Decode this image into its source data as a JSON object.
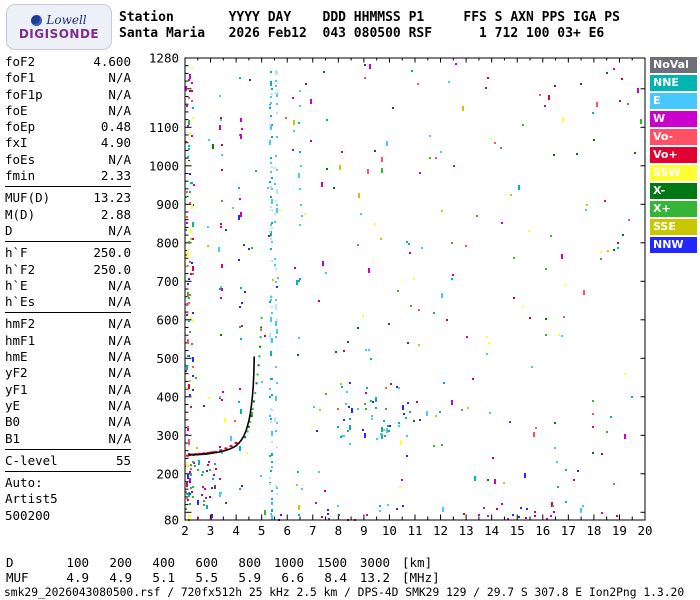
{
  "logo": {
    "line1": "Lowell",
    "line2": "DIGISONDE"
  },
  "header": {
    "line1": "Station       YYYY DAY    DDD HHMMSS P1     FFS S AXN PPS IGA PS",
    "line2": "Santa Maria   2026 Feb12  043 080500 RSF      1 712 100 03+ E6"
  },
  "params": {
    "groups": [
      {
        "rows": [
          [
            "foF2",
            "4.600"
          ],
          [
            "foF1",
            "N/A"
          ],
          [
            "foF1p",
            "N/A"
          ],
          [
            "foE",
            "N/A"
          ],
          [
            "foEp",
            "0.48"
          ],
          [
            "fxI",
            "4.90"
          ],
          [
            "foEs",
            "N/A"
          ],
          [
            "fmin",
            "2.33"
          ]
        ]
      },
      {
        "rows": [
          [
            "MUF(D)",
            "13.23"
          ],
          [
            "M(D)",
            "2.88"
          ],
          [
            "D",
            "N/A"
          ]
        ]
      },
      {
        "rows": [
          [
            "h`F",
            "250.0"
          ],
          [
            "h`F2",
            "250.0"
          ],
          [
            "h`E",
            "N/A"
          ],
          [
            "h`Es",
            "N/A"
          ]
        ]
      },
      {
        "rows": [
          [
            "hmF2",
            "N/A"
          ],
          [
            "hmF1",
            "N/A"
          ],
          [
            "hmE",
            "N/A"
          ],
          [
            "yF2",
            "N/A"
          ],
          [
            "yF1",
            "N/A"
          ],
          [
            "yE",
            "N/A"
          ],
          [
            "B0",
            "N/A"
          ],
          [
            "B1",
            "N/A"
          ]
        ]
      },
      {
        "rows": [
          [
            "C-level",
            "55"
          ]
        ]
      }
    ],
    "auto_lines": [
      "Auto:",
      "Artist5",
      "500200"
    ]
  },
  "legend": {
    "items": [
      {
        "label": "NoVal",
        "color": "#6e6e78"
      },
      {
        "label": "NNE",
        "color": "#00b4b4"
      },
      {
        "label": "E",
        "color": "#46c8ff"
      },
      {
        "label": "W",
        "color": "#cc00cc"
      },
      {
        "label": "Vo-",
        "color": "#ff5064"
      },
      {
        "label": "Vo+",
        "color": "#e00032"
      },
      {
        "label": "SSW",
        "color": "#ffff32"
      },
      {
        "label": "X-",
        "color": "#007814"
      },
      {
        "label": "X+",
        "color": "#36b436"
      },
      {
        "label": "SSE",
        "color": "#c8c800"
      },
      {
        "label": "NNW",
        "color": "#2328ff"
      }
    ]
  },
  "d_muf": {
    "rows": [
      {
        "label": "D",
        "values": [
          "100",
          "200",
          "400",
          "600",
          "800",
          "1000",
          "1500",
          "3000"
        ],
        "unit": "[km]"
      },
      {
        "label": "MUF",
        "values": [
          "4.9",
          "4.9",
          "5.1",
          "5.5",
          "5.9",
          "6.6",
          "8.4",
          "13.2"
        ],
        "unit": "[MHz]"
      }
    ]
  },
  "footer": {
    "text": "smk29_2026043080500.rsf / 720fx512h 25 kHz 2.5 km / DPS-4D SMK29 129 / 29.7 S 307.8 E Ion2Png 1.3.20"
  },
  "chart_data": {
    "type": "scatter",
    "title": "Digisonde ionogram Santa Maria 2026 Feb12 043 080500",
    "xlabel": "[MHz]",
    "ylabel": "[km]",
    "xlim": [
      2,
      20
    ],
    "ylim": [
      80,
      1280
    ],
    "x_tick_labels": [
      2,
      3,
      4,
      5,
      6,
      7,
      8,
      9,
      10,
      11,
      12,
      13,
      14,
      15,
      16,
      17,
      18,
      19,
      20
    ],
    "y_tick_labels": [
      1280,
      1100,
      1000,
      900,
      800,
      700,
      600,
      500,
      400,
      300,
      200,
      80
    ],
    "o_trace_black": [
      [
        2.15,
        249
      ],
      [
        2.3,
        250
      ],
      [
        2.5,
        250
      ],
      [
        2.7,
        251
      ],
      [
        2.9,
        252
      ],
      [
        3.1,
        254
      ],
      [
        3.3,
        256
      ],
      [
        3.5,
        259
      ],
      [
        3.7,
        263
      ],
      [
        3.9,
        269
      ],
      [
        4.0,
        273
      ],
      [
        4.1,
        279
      ],
      [
        4.2,
        287
      ],
      [
        4.3,
        298
      ],
      [
        4.4,
        314
      ],
      [
        4.5,
        338
      ],
      [
        4.55,
        355
      ],
      [
        4.6,
        378
      ],
      [
        4.64,
        402
      ],
      [
        4.67,
        428
      ],
      [
        4.69,
        455
      ],
      [
        4.7,
        478
      ],
      [
        4.71,
        505
      ]
    ],
    "o_trace_red_dots": [
      [
        2.1,
        247
      ],
      [
        2.18,
        249
      ],
      [
        2.26,
        250
      ],
      [
        2.34,
        249
      ],
      [
        2.42,
        251
      ],
      [
        2.5,
        250
      ],
      [
        2.58,
        252
      ],
      [
        2.66,
        251
      ],
      [
        2.74,
        253
      ],
      [
        2.82,
        252
      ],
      [
        2.9,
        254
      ],
      [
        3.0,
        255
      ],
      [
        3.1,
        256
      ],
      [
        3.2,
        257
      ],
      [
        3.4,
        261
      ],
      [
        3.6,
        266
      ],
      [
        3.8,
        272
      ],
      [
        4.0,
        280
      ]
    ],
    "x_trace_green_dots": [
      [
        4.35,
        295
      ],
      [
        4.45,
        310
      ],
      [
        4.5,
        322
      ],
      [
        4.55,
        335
      ],
      [
        4.6,
        350
      ],
      [
        4.65,
        368
      ],
      [
        4.7,
        388
      ],
      [
        4.75,
        410
      ],
      [
        4.8,
        435
      ],
      [
        4.84,
        458
      ],
      [
        4.88,
        482
      ],
      [
        4.91,
        505
      ],
      [
        4.94,
        530
      ],
      [
        4.96,
        555
      ],
      [
        4.98,
        580
      ],
      [
        5.0,
        605
      ]
    ],
    "noise_seed": 20260212,
    "noise_clusters": [
      {
        "name": "left-edge",
        "fmin": 2.0,
        "fmax": 2.3,
        "hmin": 80,
        "hmax": 1270,
        "count": 100,
        "colors": [
          "#cc00cc",
          "#e00032",
          "#00b4b4",
          "#2328ff",
          "#36b436",
          "#ffff32",
          "#ff5064"
        ]
      },
      {
        "name": "stripe-5.3",
        "fmin": 5.28,
        "fmax": 5.38,
        "hmin": 90,
        "hmax": 1270,
        "count": 80,
        "colors": [
          "#46c8ff",
          "#00b4b4",
          "#b4e6ff"
        ]
      },
      {
        "name": "stripe-5.5",
        "fmin": 5.48,
        "fmax": 5.58,
        "hmin": 120,
        "hmax": 1260,
        "count": 45,
        "colors": [
          "#46c8ff",
          "#b4e6ff"
        ]
      },
      {
        "name": "stripe-3.3",
        "fmin": 3.3,
        "fmax": 3.42,
        "hmin": 100,
        "hmax": 1260,
        "count": 25,
        "colors": [
          "#cc00cc",
          "#46c8ff",
          "#e00032"
        ]
      },
      {
        "name": "stripe-4.1",
        "fmin": 4.05,
        "fmax": 4.2,
        "hmin": 150,
        "hmax": 1250,
        "count": 22,
        "colors": [
          "#cc00cc",
          "#00b4b4",
          "#2328ff"
        ]
      },
      {
        "name": "stripe-6.5",
        "fmin": 6.4,
        "fmax": 6.55,
        "hmin": 700,
        "hmax": 1200,
        "count": 12,
        "colors": [
          "#46c8ff",
          "#00b4b4"
        ]
      },
      {
        "name": "mid-cluster",
        "fmin": 7.8,
        "fmax": 10.8,
        "hmin": 290,
        "hmax": 430,
        "count": 45,
        "colors": [
          "#46c8ff",
          "#2328ff",
          "#00b4b4",
          "#36b436"
        ]
      },
      {
        "name": "bottom-left",
        "fmin": 2.0,
        "fmax": 3.2,
        "hmin": 80,
        "hmax": 240,
        "count": 40,
        "colors": [
          "#cc00cc",
          "#e00032",
          "#00b4b4",
          "#36b436",
          "#2328ff"
        ]
      },
      {
        "name": "bottom-row",
        "fmin": 5.5,
        "fmax": 19.8,
        "hmin": 82,
        "hmax": 120,
        "count": 30,
        "colors": [
          "#cc00cc",
          "#46c8ff",
          "#e00032",
          "#2328ff"
        ]
      },
      {
        "name": "sparse-all",
        "fmin": 2.0,
        "fmax": 19.9,
        "hmin": 85,
        "hmax": 1270,
        "count": 260,
        "colors": [
          "#cc00cc",
          "#e00032",
          "#00b4b4",
          "#2328ff",
          "#36b436",
          "#ffff32",
          "#ff5064",
          "#46c8ff",
          "#007814",
          "#c8c800"
        ]
      }
    ]
  }
}
